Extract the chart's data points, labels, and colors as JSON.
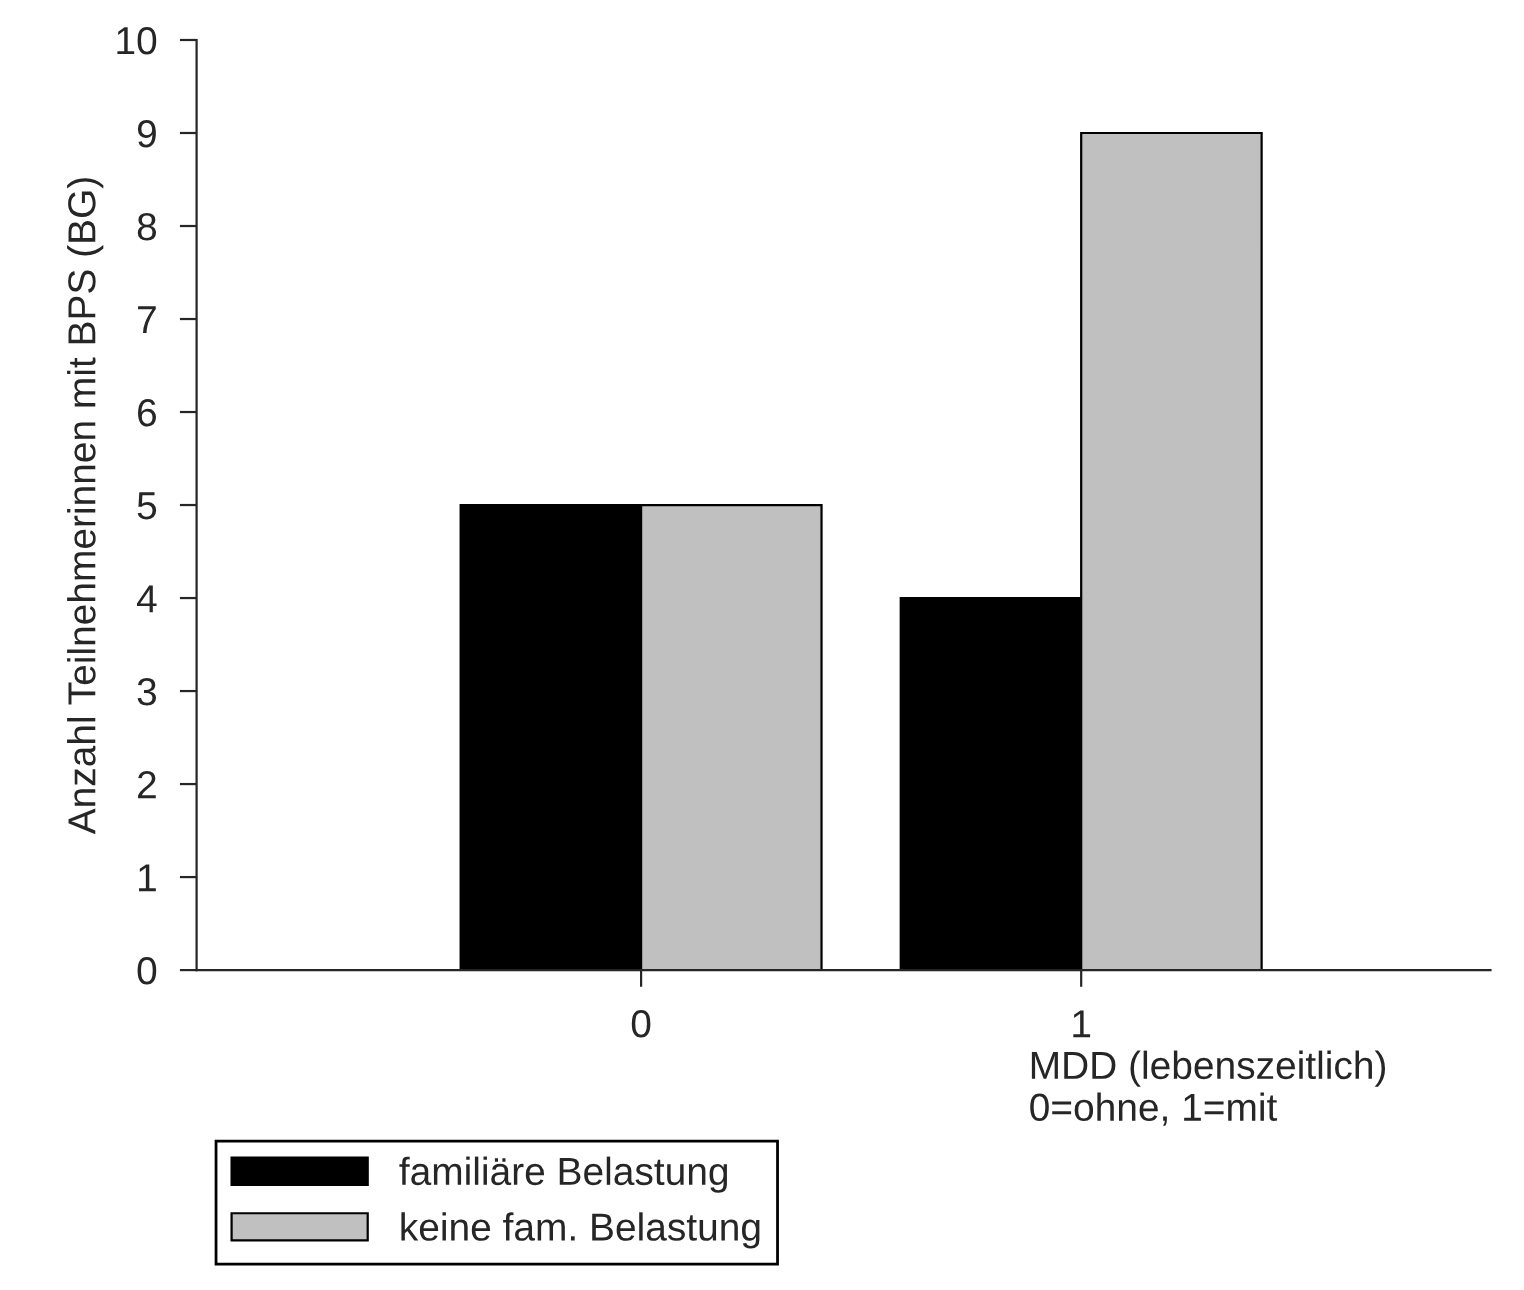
{
  "chart_data": {
    "type": "bar",
    "categories": [
      "0",
      "1"
    ],
    "series": [
      {
        "name": "familiäre Belastung",
        "color": "#000000",
        "values": [
          5,
          4
        ]
      },
      {
        "name": "keine fam. Belastung",
        "color": "#c0c0c0",
        "values": [
          5,
          9
        ]
      }
    ],
    "ylabel": "Anzahl Teilnehmerinnen mit BPS (BG)",
    "xlabel": "MDD (lebenszeitlich)\n0=ohne, 1=mit",
    "ylim": [
      0,
      10
    ],
    "yticks": [
      0,
      1,
      2,
      3,
      4,
      5,
      6,
      7,
      8,
      9,
      10
    ],
    "legend": "bottom left"
  }
}
